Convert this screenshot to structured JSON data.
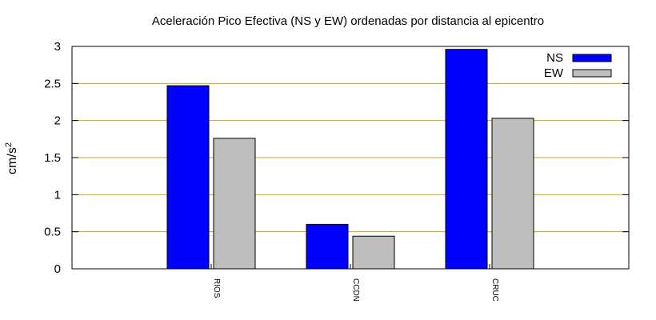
{
  "chart_data": {
    "type": "bar",
    "title": "Aceleración Pico Efectiva (NS y EW) ordenadas por distancia al epicentro",
    "ylabel_base": "cm/s",
    "ylabel_sup": "2",
    "xlabel": "",
    "categories": [
      "RIOS",
      "CCDN",
      "CRUC"
    ],
    "series": [
      {
        "name": "NS",
        "values": [
          2.47,
          0.6,
          2.96
        ],
        "color": "#0000ff"
      },
      {
        "name": "EW",
        "values": [
          1.76,
          0.44,
          2.03
        ],
        "color": "#bebebe"
      }
    ],
    "ylim": [
      0,
      3
    ],
    "yticks": [
      {
        "value": 0,
        "label": "0"
      },
      {
        "value": 0.5,
        "label": "0.5"
      },
      {
        "value": 1,
        "label": "1"
      },
      {
        "value": 1.5,
        "label": "1.5"
      },
      {
        "value": 2,
        "label": "2"
      },
      {
        "value": 2.5,
        "label": "2.5"
      },
      {
        "value": 3,
        "label": "3"
      }
    ],
    "grid": true,
    "grid_color": "#d4a017",
    "legend_position": "top-right"
  }
}
